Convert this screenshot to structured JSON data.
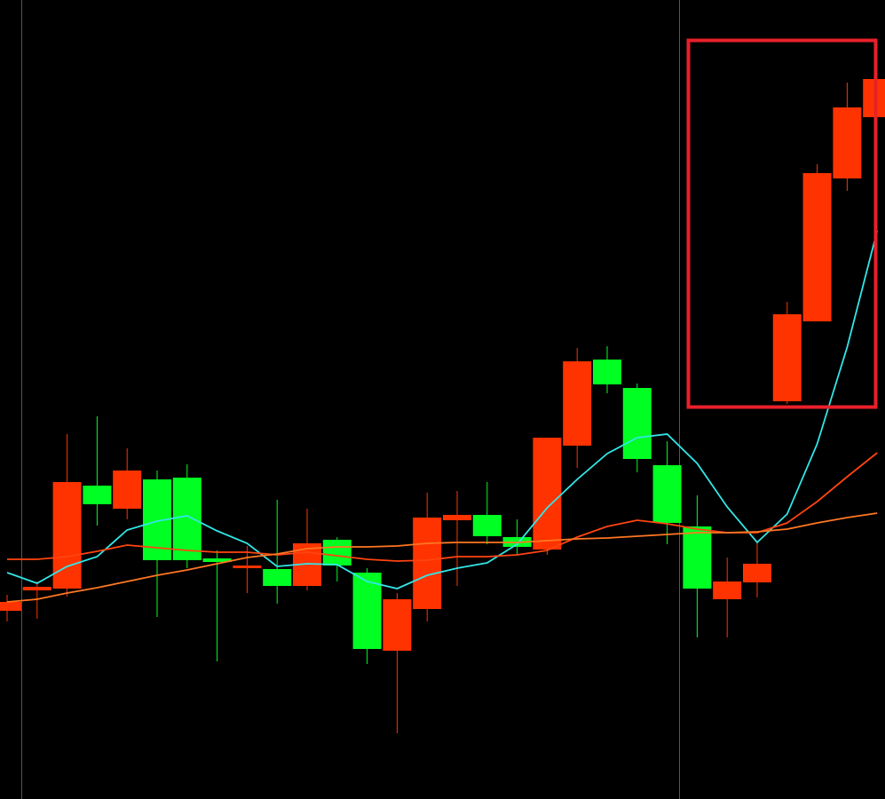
{
  "chart_data": {
    "type": "candlestick",
    "ylim": [
      0,
      900
    ],
    "up_color": "#ff3300",
    "down_color": "#00ff22",
    "open": [
      212,
      235,
      237,
      353,
      327,
      360,
      362,
      271,
      260,
      259,
      240,
      292,
      255,
      167,
      214,
      314,
      320,
      295,
      281,
      398,
      495,
      463,
      376,
      307,
      225,
      244,
      448,
      538,
      699,
      768
    ],
    "high": [
      230,
      245,
      411,
      431,
      395,
      370,
      377,
      280,
      285,
      337,
      327,
      295,
      260,
      232,
      345,
      347,
      357,
      315,
      407,
      508,
      510,
      468,
      403,
      342,
      272,
      290,
      560,
      715,
      807,
      811
    ],
    "low": [
      200,
      203,
      228,
      308,
      315,
      205,
      260,
      155,
      232,
      220,
      235,
      245,
      152,
      74,
      200,
      240,
      287,
      275,
      275,
      373,
      457,
      368,
      287,
      182,
      182,
      227,
      445,
      538,
      685,
      768
    ],
    "close": [
      222,
      239,
      357,
      332,
      370,
      269,
      269,
      267,
      263,
      240,
      288,
      263,
      169,
      225,
      317,
      320,
      296,
      284,
      407,
      493,
      467,
      383,
      311,
      237,
      245,
      265,
      546,
      705,
      779,
      811
    ],
    "lines": [
      {
        "color": "#33e6e6",
        "values": [
          255,
          243,
          262,
          273,
          303,
          313,
          319,
          302,
          288,
          262,
          265,
          264,
          245,
          237,
          252,
          260,
          266,
          287,
          328,
          360,
          389,
          407,
          411,
          378,
          329,
          289,
          321,
          400,
          509,
          640
        ]
      },
      {
        "color": "#ff4411",
        "values": [
          270,
          270,
          273,
          279,
          286,
          283,
          280,
          278,
          278,
          275,
          278,
          274,
          270,
          268,
          269,
          273,
          273,
          275,
          280,
          295,
          307,
          314,
          310,
          304,
          300,
          300,
          311,
          335,
          363,
          390
        ]
      },
      {
        "color": "#ff7722",
        "values": [
          222,
          225,
          232,
          238,
          245,
          252,
          258,
          265,
          272,
          276,
          282,
          284,
          284,
          285,
          288,
          289,
          289,
          289,
          291,
          293,
          294,
          296,
          298,
          300,
          300,
          301,
          304,
          311,
          317,
          322
        ]
      }
    ]
  }
}
